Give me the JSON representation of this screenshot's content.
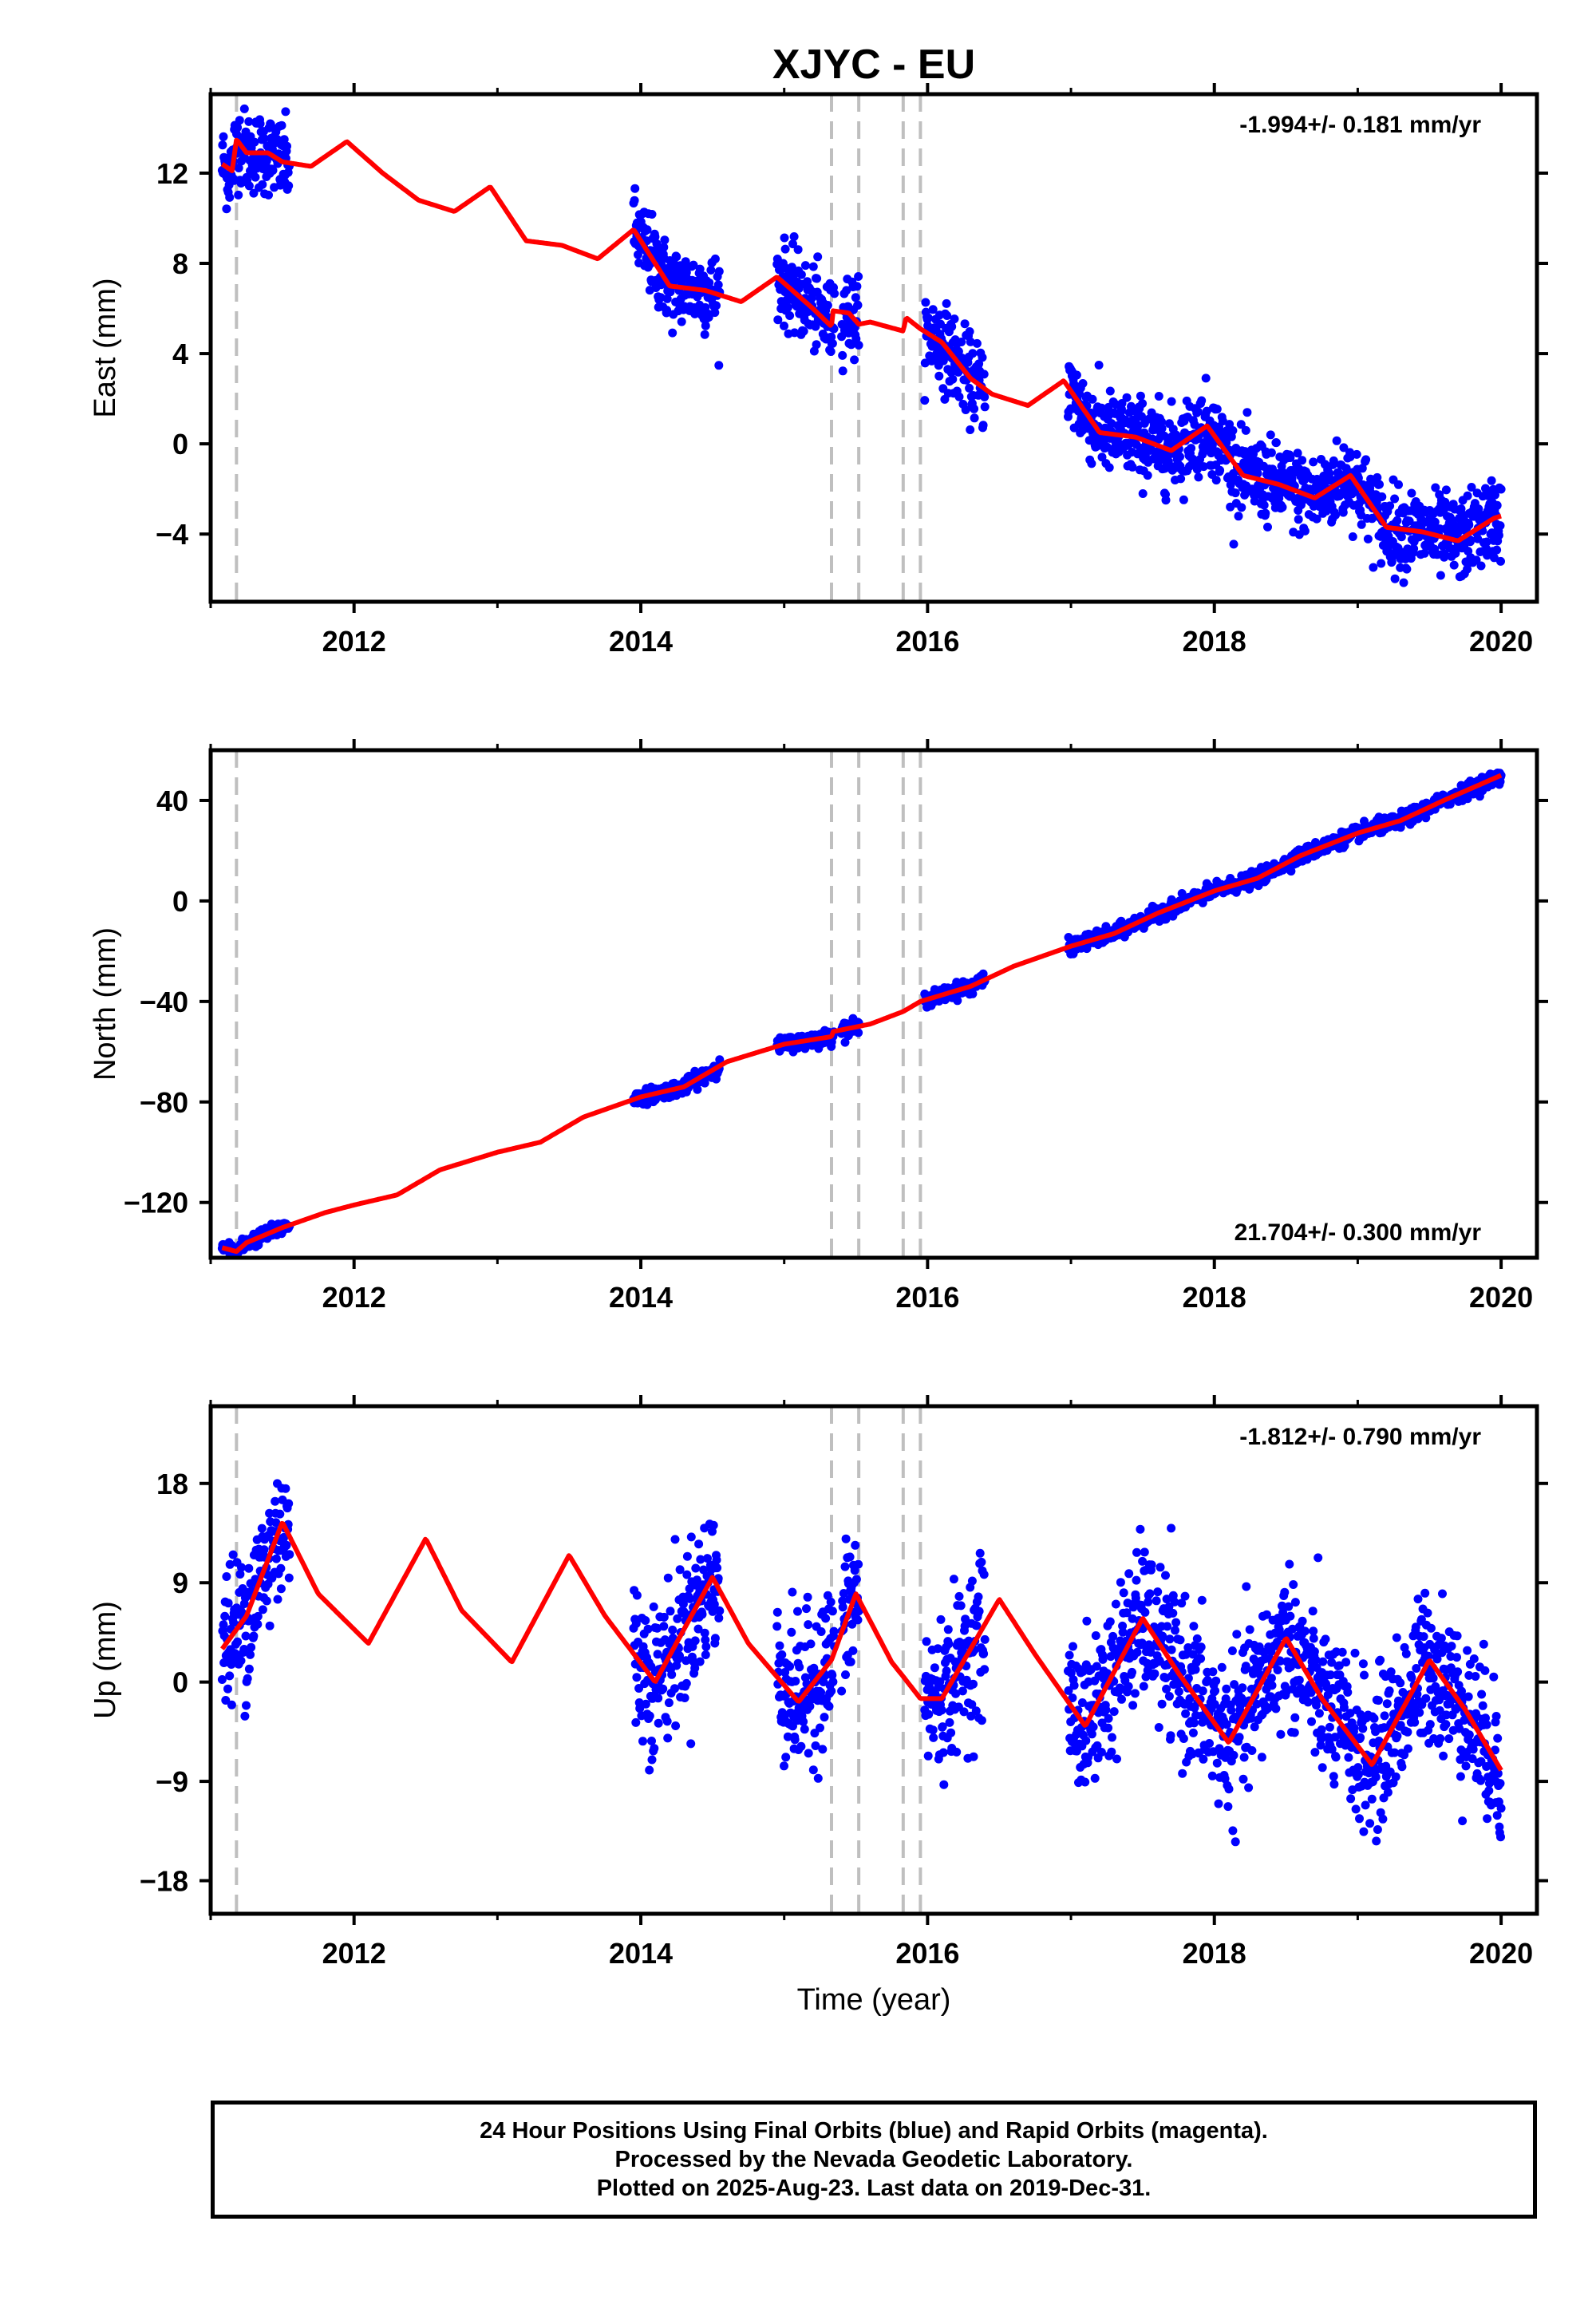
{
  "title": "XJYC - EU",
  "xlabel": "Time (year)",
  "xticks": [
    2012,
    2014,
    2016,
    2018,
    2020
  ],
  "xlim": [
    2011.0,
    2020.25
  ],
  "colors": {
    "final": "#0000ff",
    "model": "#ff0000",
    "offset_line": "#bfbfbf",
    "frame": "#000000"
  },
  "offset_epochs": [
    2011.18,
    2015.33,
    2015.52,
    2015.83,
    2015.95
  ],
  "caption": {
    "line1": "24 Hour Positions Using Final Orbits (blue) and Rapid Orbits (magenta).",
    "line2": "Processed by the Nevada Geodetic Laboratory.",
    "line3": "Plotted on 2025-Aug-23. Last data on 2019-Dec-31."
  },
  "chart_data": [
    {
      "type": "scatter",
      "name": "east",
      "ylabel": "East (mm)",
      "ylim": [
        -7,
        15.5
      ],
      "yticks": [
        12,
        8,
        4,
        0,
        -4
      ],
      "ytick_labels": [
        "12",
        "8",
        "4",
        "0",
        "−4"
      ],
      "rate_label": "-1.994+/- 0.181 mm/yr",
      "rate_position": "top-right",
      "grid": false,
      "data_segments": [
        [
          2011.08,
          2011.55
        ],
        [
          2013.95,
          2014.55
        ],
        [
          2014.95,
          2015.35
        ],
        [
          2015.4,
          2015.52
        ],
        [
          2015.98,
          2016.4
        ],
        [
          2016.98,
          2020.0
        ]
      ],
      "model": {
        "x": [
          2011.08,
          2011.15,
          2011.18,
          2011.25,
          2011.4,
          2011.5,
          2011.7,
          2011.95,
          2012.2,
          2012.45,
          2012.7,
          2012.95,
          2013.2,
          2013.45,
          2013.7,
          2013.95,
          2014.2,
          2014.45,
          2014.7,
          2014.95,
          2015.2,
          2015.33,
          2015.34,
          2015.45,
          2015.52,
          2015.6,
          2015.83,
          2015.85,
          2015.95,
          2016.1,
          2016.3,
          2016.45,
          2016.7,
          2016.95,
          2017.2,
          2017.45,
          2017.7,
          2017.95,
          2018.2,
          2018.45,
          2018.7,
          2018.95,
          2019.2,
          2019.45,
          2019.7,
          2019.95,
          2020.0
        ],
        "y": [
          12.4,
          12.1,
          13.5,
          12.9,
          12.9,
          12.5,
          12.3,
          13.4,
          12.0,
          10.8,
          10.3,
          11.4,
          9.0,
          8.8,
          8.2,
          9.5,
          7.0,
          6.8,
          6.3,
          7.4,
          6.0,
          5.2,
          5.9,
          5.8,
          5.3,
          5.4,
          5.0,
          5.6,
          5.1,
          4.5,
          2.9,
          2.2,
          1.7,
          2.8,
          0.5,
          0.3,
          -0.3,
          0.8,
          -1.4,
          -1.8,
          -2.4,
          -1.4,
          -3.7,
          -3.9,
          -4.3,
          -3.3,
          -3.2
        ]
      },
      "scatter_noise": 0.9,
      "points_per_year": 330
    },
    {
      "type": "scatter",
      "name": "north",
      "ylabel": "North (mm)",
      "ylim": [
        -142,
        60
      ],
      "yticks": [
        40,
        0,
        -40,
        -80,
        -120
      ],
      "ytick_labels": [
        "40",
        "0",
        "−40",
        "−80",
        "−120"
      ],
      "rate_label": "21.704+/- 0.300 mm/yr",
      "rate_position": "bottom-right",
      "grid": false,
      "data_segments": [
        [
          2011.08,
          2011.55
        ],
        [
          2013.95,
          2014.55
        ],
        [
          2014.95,
          2015.35
        ],
        [
          2015.4,
          2015.52
        ],
        [
          2015.98,
          2016.4
        ],
        [
          2016.98,
          2020.0
        ]
      ],
      "model": {
        "x": [
          2011.08,
          2011.18,
          2011.25,
          2011.5,
          2011.8,
          2012.0,
          2012.3,
          2012.6,
          2013.0,
          2013.3,
          2013.6,
          2014.0,
          2014.3,
          2014.6,
          2015.0,
          2015.33,
          2015.34,
          2015.6,
          2015.83,
          2015.95,
          2016.3,
          2016.6,
          2017.0,
          2017.3,
          2017.6,
          2018.0,
          2018.3,
          2018.6,
          2019.0,
          2019.3,
          2019.6,
          2020.0
        ],
        "y": [
          -138,
          -139.5,
          -136,
          -130,
          -124,
          -121,
          -117,
          -107,
          -100,
          -96,
          -86,
          -78,
          -74,
          -64,
          -57,
          -54,
          -52,
          -49,
          -44,
          -40,
          -34,
          -26,
          -18,
          -13,
          -5,
          4,
          9,
          18,
          27,
          32,
          40,
          50
        ]
      },
      "scatter_noise": 1.4,
      "points_per_year": 330
    },
    {
      "type": "scatter",
      "name": "up",
      "ylabel": "Up (mm)",
      "ylim": [
        -21,
        25
      ],
      "yticks": [
        18,
        9,
        0,
        -9,
        -18
      ],
      "ytick_labels": [
        "18",
        "9",
        "0",
        "−9",
        "−18"
      ],
      "rate_label": "-1.812+/- 0.790 mm/yr",
      "rate_position": "top-right",
      "grid": false,
      "data_segments": [
        [
          2011.08,
          2011.55
        ],
        [
          2013.95,
          2014.55
        ],
        [
          2014.95,
          2015.35
        ],
        [
          2015.4,
          2015.52
        ],
        [
          2015.98,
          2016.4
        ],
        [
          2016.98,
          2020.0
        ]
      ],
      "model": {
        "x": [
          2011.08,
          2011.25,
          2011.5,
          2011.75,
          2012.1,
          2012.5,
          2012.75,
          2013.1,
          2013.5,
          2013.75,
          2014.1,
          2014.5,
          2014.75,
          2015.1,
          2015.33,
          2015.5,
          2015.75,
          2015.83,
          2015.95,
          2016.1,
          2016.5,
          2016.75,
          2017.1,
          2017.5,
          2017.75,
          2018.1,
          2018.5,
          2018.75,
          2019.1,
          2019.5,
          2019.75,
          2020.0
        ],
        "y": [
          3.0,
          6.0,
          14.5,
          8.0,
          3.5,
          13.0,
          6.5,
          1.8,
          11.5,
          6.0,
          0.0,
          9.5,
          3.5,
          -1.8,
          2.0,
          8.0,
          1.8,
          0.5,
          -1.5,
          -1.5,
          7.5,
          2.5,
          -4.0,
          5.8,
          0.8,
          -5.5,
          4.0,
          -1.5,
          -7.5,
          2.0,
          -2.5,
          -8.0
        ]
      },
      "scatter_noise": 3.4,
      "points_per_year": 330
    }
  ]
}
